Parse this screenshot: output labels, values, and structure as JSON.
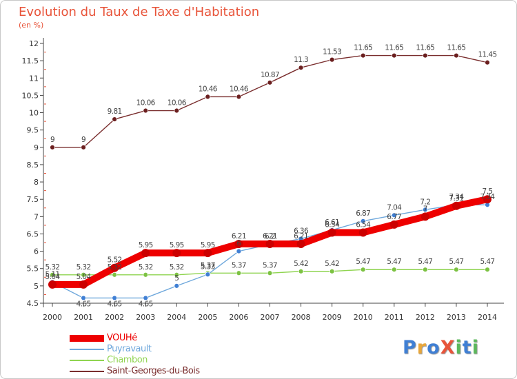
{
  "header": {
    "title": "Evolution du Taux de Taxe d'Habitation",
    "unit": "(en %)"
  },
  "logo": {
    "text": "ProXiti",
    "letters": [
      {
        "ch": "P",
        "color": "#3f7fd4"
      },
      {
        "ch": "r",
        "color": "#e8a63a"
      },
      {
        "ch": "o",
        "color": "#3f7fd4"
      },
      {
        "ch": "X",
        "color": "#e8543a"
      },
      {
        "ch": "i",
        "color": "#5cb85c"
      },
      {
        "ch": "t",
        "color": "#3f7fd4"
      },
      {
        "ch": "i",
        "color": "#5cb85c"
      }
    ]
  },
  "chart_data": {
    "type": "line",
    "title": "Evolution du Taux de Taxe d'Habitation",
    "ylabel": "(en %)",
    "x": [
      "2000",
      "2001",
      "2002",
      "2003",
      "2004",
      "2005",
      "2006",
      "2007",
      "2008",
      "2009",
      "2010",
      "2011",
      "2012",
      "2013",
      "2014"
    ],
    "ylim": [
      4.5,
      12
    ],
    "yticks": [
      "4.5",
      "5",
      "5.5",
      "6",
      "6.5",
      "7",
      "7.5",
      "8",
      "8.5",
      "9",
      "9.5",
      "10",
      "10.5",
      "11",
      "11.5",
      "12"
    ],
    "grid": false,
    "legend_position": "bottom-left",
    "series": [
      {
        "name": "VOUHé",
        "color": "#ee0000",
        "values": [
          5.04,
          5.04,
          5.52,
          5.95,
          5.95,
          5.95,
          6.21,
          6.21,
          6.21,
          6.54,
          6.54,
          6.77,
          7.0,
          7.31,
          7.5
        ],
        "labels": [
          "5.04",
          "5.04",
          "5.52",
          "5.95",
          "5.95",
          "5.95",
          "6.21",
          "6.21",
          "6.21",
          "6.54",
          "6.54",
          "6.77",
          "7",
          "7.31",
          "7.5"
        ]
      },
      {
        "name": "Puyravault",
        "color": "#6fa8dc",
        "values": [
          5.11,
          4.65,
          4.65,
          4.65,
          5.0,
          5.33,
          6.0,
          6.2,
          6.36,
          6.61,
          6.87,
          7.04,
          7.2,
          7.34,
          7.34
        ],
        "labels": [
          "5.11",
          "4.65",
          "4.65",
          "4.65",
          "5",
          "5.33",
          "6",
          "6.2",
          "6.36",
          "6.61",
          "6.87",
          "7.04",
          "7.2",
          "7.34",
          "7.34"
        ]
      },
      {
        "name": "Chambon",
        "color": "#8fd450",
        "values": [
          5.32,
          5.32,
          5.32,
          5.32,
          5.32,
          5.37,
          5.37,
          5.37,
          5.42,
          5.42,
          5.47,
          5.47,
          5.47,
          5.47,
          5.47
        ],
        "labels": [
          "5.32",
          "5.32",
          "5.32",
          "5.32",
          "5.32",
          "5.37",
          "5.37",
          "5.37",
          "5.42",
          "5.42",
          "5.47",
          "5.47",
          "5.47",
          "5.47",
          "5.47"
        ]
      },
      {
        "name": "Saint-Georges-du-Bois",
        "color": "#7a2e2e",
        "values": [
          9,
          9,
          9.81,
          10.06,
          10.06,
          10.46,
          10.46,
          10.87,
          11.3,
          11.53,
          11.65,
          11.65,
          11.65,
          11.65,
          11.45
        ],
        "labels": [
          "9",
          "9",
          "9.81",
          "10.06",
          "10.06",
          "10.46",
          "10.46",
          "10.87",
          "11.3",
          "11.53",
          "11.65",
          "11.65",
          "11.65",
          "11.65",
          "11.45"
        ]
      }
    ]
  }
}
